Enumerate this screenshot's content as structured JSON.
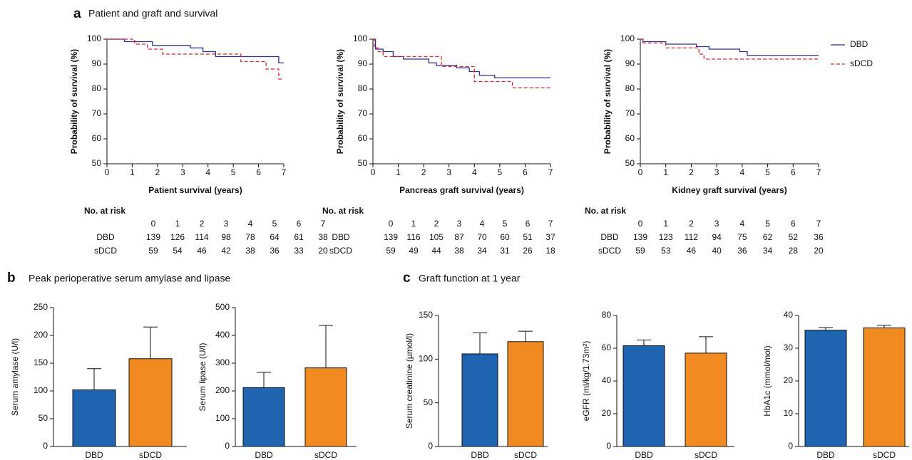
{
  "panels": [
    {
      "letter": "a",
      "title": "Patient and graft and survival"
    },
    {
      "letter": "b",
      "title": "Peak perioperative serum amylase and lipase"
    },
    {
      "letter": "c",
      "title": "Graft function at 1 year"
    }
  ],
  "chart_data": [
    {
      "type": "line",
      "step": true,
      "xlabel": "Patient survival (years)",
      "ylabel": "Probability of survival (%)",
      "xlim": [
        0,
        7
      ],
      "xticks": [
        0,
        1,
        2,
        3,
        4,
        5,
        6,
        7
      ],
      "ylim": [
        50,
        100
      ],
      "yticks": [
        50,
        60,
        70,
        80,
        90,
        100
      ],
      "series": [
        {
          "color": "#2b2f8f",
          "dash": false,
          "x": [
            0,
            0.7,
            0.7,
            1.8,
            1.8,
            3.3,
            3.3,
            3.8,
            3.8,
            4.3,
            4.3,
            6.8,
            6.8,
            7
          ],
          "values": [
            100,
            100,
            99,
            99,
            97.5,
            97.5,
            96.5,
            96.5,
            95,
            95,
            93,
            93,
            90.5,
            90.5
          ]
        },
        {
          "color": "#e0262a",
          "dash": true,
          "x": [
            0,
            1.1,
            1.1,
            1.6,
            1.6,
            2.2,
            2.2,
            5.3,
            5.3,
            6.3,
            6.3,
            6.8,
            6.8,
            7
          ],
          "values": [
            100,
            100,
            98,
            98,
            96,
            96,
            94,
            94,
            91,
            91,
            88,
            88,
            84,
            84
          ]
        }
      ],
      "risk_table": {
        "title": "No. at risk",
        "times": [
          0,
          1,
          2,
          3,
          4,
          5,
          6,
          7
        ],
        "rows": [
          {
            "name": "DBD",
            "values": [
              139,
              126,
              114,
              98,
              78,
              64,
              61,
              38
            ]
          },
          {
            "name": "sDCD",
            "values": [
              59,
              54,
              46,
              42,
              38,
              36,
              33,
              20
            ]
          }
        ]
      }
    },
    {
      "type": "line",
      "step": true,
      "xlabel": "Pancreas graft survival (years)",
      "ylabel": "Probability of survival (%)",
      "xlim": [
        0,
        7
      ],
      "xticks": [
        0,
        1,
        2,
        3,
        4,
        5,
        6,
        7
      ],
      "ylim": [
        50,
        100
      ],
      "yticks": [
        50,
        60,
        70,
        80,
        90,
        100
      ],
      "series": [
        {
          "color": "#2b2f8f",
          "dash": false,
          "x": [
            0,
            0.1,
            0.1,
            0.4,
            0.4,
            0.8,
            0.8,
            1.2,
            1.2,
            2.2,
            2.2,
            2.5,
            2.5,
            3.3,
            3.3,
            3.8,
            3.8,
            4.2,
            4.2,
            4.8,
            4.8,
            7
          ],
          "values": [
            100,
            100,
            96,
            96,
            95,
            95,
            93,
            93,
            92,
            92,
            90.5,
            90.5,
            89.5,
            89.5,
            88.5,
            88.5,
            87,
            87,
            85.5,
            85.5,
            84.5,
            84.5
          ]
        },
        {
          "color": "#e0262a",
          "dash": true,
          "x": [
            0,
            0.05,
            0.05,
            0.2,
            0.2,
            0.4,
            0.4,
            2.7,
            2.7,
            4,
            4,
            5.5,
            5.5,
            7
          ],
          "values": [
            100,
            100,
            96.5,
            96.5,
            95,
            95,
            93,
            93,
            89,
            89,
            83,
            83,
            80.5,
            80.5
          ]
        }
      ],
      "risk_table": {
        "title": "No. at risk",
        "times": [
          0,
          1,
          2,
          3,
          4,
          5,
          6,
          7
        ],
        "rows": [
          {
            "name": "DBD",
            "values": [
              139,
              116,
              105,
              87,
              70,
              60,
              51,
              37
            ]
          },
          {
            "name": "sDCD",
            "values": [
              59,
              49,
              44,
              38,
              34,
              31,
              26,
              18
            ]
          }
        ]
      }
    },
    {
      "type": "line",
      "step": true,
      "xlabel": "Kidney graft survival (years)",
      "ylabel": "Probability of survival (%)",
      "xlim": [
        0,
        7
      ],
      "xticks": [
        0,
        1,
        2,
        3,
        4,
        5,
        6,
        7
      ],
      "ylim": [
        50,
        100
      ],
      "yticks": [
        50,
        60,
        70,
        80,
        90,
        100
      ],
      "legend": "upper right outside",
      "series": [
        {
          "name": "DBD",
          "color": "#2b2f8f",
          "dash": false,
          "x": [
            0,
            0.1,
            0.1,
            1,
            1,
            2.2,
            2.2,
            2.7,
            2.7,
            3.9,
            3.9,
            4.2,
            4.2,
            7
          ],
          "values": [
            100,
            100,
            99,
            99,
            98,
            98,
            97,
            97,
            96,
            96,
            95,
            95,
            93.5,
            93.5
          ]
        },
        {
          "name": "sDCD",
          "color": "#e0262a",
          "dash": true,
          "x": [
            0,
            0.1,
            0.1,
            1,
            1,
            2.3,
            2.3,
            2.5,
            2.5,
            7
          ],
          "values": [
            100,
            100,
            98.5,
            98.5,
            96.5,
            96.5,
            94,
            94,
            92,
            92
          ]
        }
      ],
      "risk_table": {
        "title": "No. at risk",
        "times": [
          0,
          1,
          2,
          3,
          4,
          5,
          6,
          7
        ],
        "rows": [
          {
            "name": "DBD",
            "values": [
              139,
              123,
              112,
              94,
              75,
              62,
              52,
              36
            ]
          },
          {
            "name": "sDCD",
            "values": [
              59,
              53,
              46,
              40,
              36,
              34,
              28,
              20
            ]
          }
        ]
      }
    },
    {
      "type": "bar",
      "ylabel": "Serum amylase (U/l)",
      "categories": [
        "DBD",
        "sDCD"
      ],
      "values": [
        102,
        158
      ],
      "errors": [
        38,
        57
      ],
      "colors": [
        "#1f64b0",
        "#f28a22"
      ],
      "ylim": [
        0,
        250
      ],
      "yticks": [
        0,
        50,
        100,
        150,
        200,
        250
      ]
    },
    {
      "type": "bar",
      "ylabel": "Serum lipase (U/l)",
      "categories": [
        "DBD",
        "sDCD"
      ],
      "values": [
        212,
        283
      ],
      "errors": [
        55,
        153
      ],
      "colors": [
        "#1f64b0",
        "#f28a22"
      ],
      "ylim": [
        0,
        500
      ],
      "yticks": [
        0,
        100,
        200,
        300,
        400,
        500
      ]
    },
    {
      "type": "bar",
      "ylabel": "Serum creatinine (μmol/l)",
      "categories": [
        "DBD",
        "sDCD"
      ],
      "values": [
        106,
        120
      ],
      "errors": [
        24,
        12
      ],
      "colors": [
        "#1f64b0",
        "#f28a22"
      ],
      "ylim": [
        0,
        150
      ],
      "yticks": [
        0,
        50,
        100,
        150
      ]
    },
    {
      "type": "bar",
      "ylabel": "eGFR (ml/kg/1.73m²)",
      "categories": [
        "DBD",
        "sDCD"
      ],
      "values": [
        61.5,
        57
      ],
      "errors": [
        3.5,
        10
      ],
      "colors": [
        "#1f64b0",
        "#f28a22"
      ],
      "ylim": [
        0,
        80
      ],
      "yticks": [
        0,
        20,
        40,
        60,
        80
      ]
    },
    {
      "type": "bar",
      "ylabel": "HbA1c (mmol/mol)",
      "categories": [
        "DBD",
        "sDCD"
      ],
      "values": [
        35.5,
        36.2
      ],
      "errors": [
        0.8,
        0.8
      ],
      "colors": [
        "#1f64b0",
        "#f28a22"
      ],
      "ylim": [
        0,
        40
      ],
      "yticks": [
        0,
        10,
        20,
        30,
        40
      ]
    }
  ]
}
